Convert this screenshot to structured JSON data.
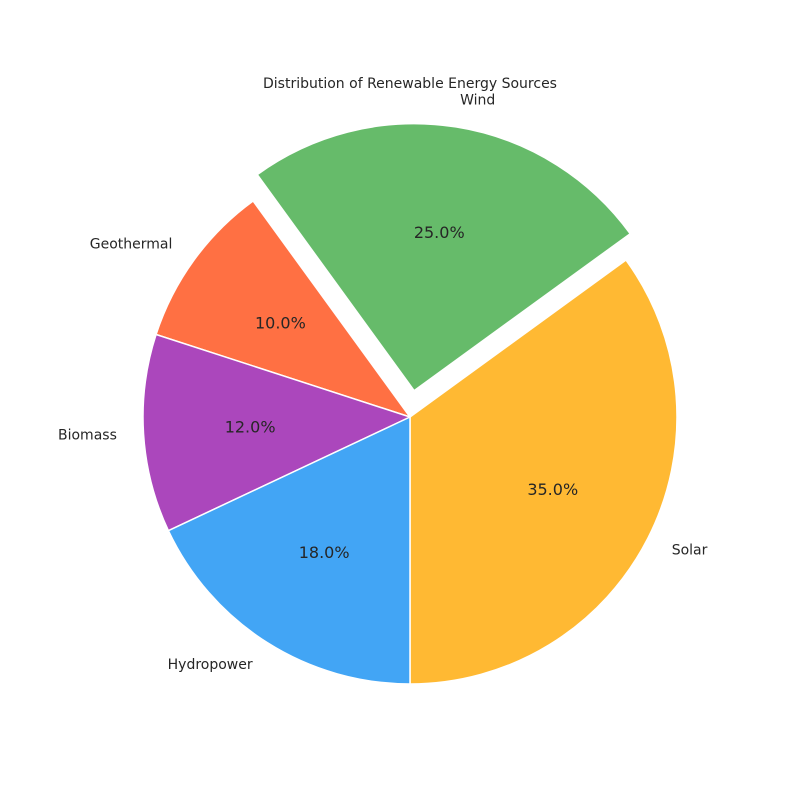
{
  "chart_data": {
    "type": "pie",
    "title": "Distribution of Renewable Energy Sources",
    "categories": [
      "Solar",
      "Wind",
      "Geothermal",
      "Biomass",
      "Hydropower"
    ],
    "values": [
      35.0,
      25.0,
      10.0,
      12.0,
      18.0
    ],
    "value_labels": [
      "35.0%",
      "25.0%",
      "10.0%",
      "12.0%",
      "18.0%"
    ],
    "colors": [
      "#ffb933",
      "#66bb6a",
      "#ff7043",
      "#ab47bc",
      "#42a5f5"
    ],
    "exploded": [
      false,
      true,
      false,
      false,
      false
    ],
    "start_angle_deg": -90,
    "direction": "counterclockwise",
    "slice_edge_color": "#ffffff"
  }
}
